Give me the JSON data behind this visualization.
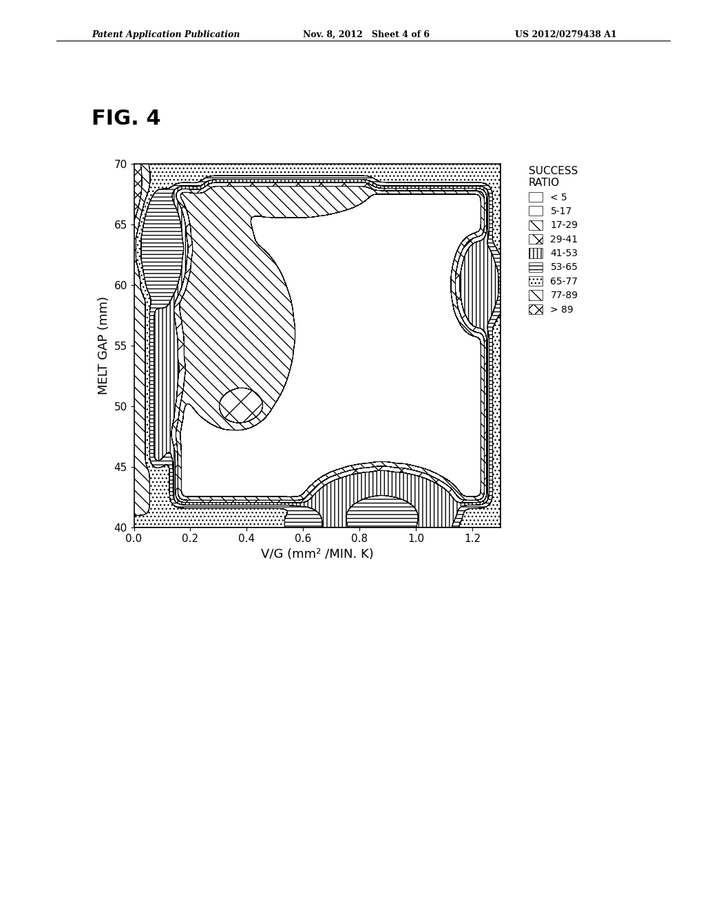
{
  "title": "FIG. 4",
  "xlabel": "V/G (mm² /MIN. K)",
  "ylabel": "MELT GAP (mm)",
  "xlim": [
    0.0,
    1.3
  ],
  "ylim": [
    40,
    70
  ],
  "xticks": [
    0.0,
    0.2,
    0.4,
    0.6,
    0.8,
    1.0,
    1.2
  ],
  "yticks": [
    40,
    45,
    50,
    55,
    60,
    65,
    70
  ],
  "legend_title": "SUCCESS\nRATIO",
  "legend_labels": [
    "< 5",
    "5-17",
    "17-29",
    "29-41",
    "41-53",
    "53-65",
    "65-77",
    "77-89",
    "> 89"
  ],
  "header_left": "Patent Application Publication",
  "header_center": "Nov. 8, 2012   Sheet 4 of 6",
  "header_right": "US 2012/0279438 A1",
  "background_color": "#ffffff"
}
